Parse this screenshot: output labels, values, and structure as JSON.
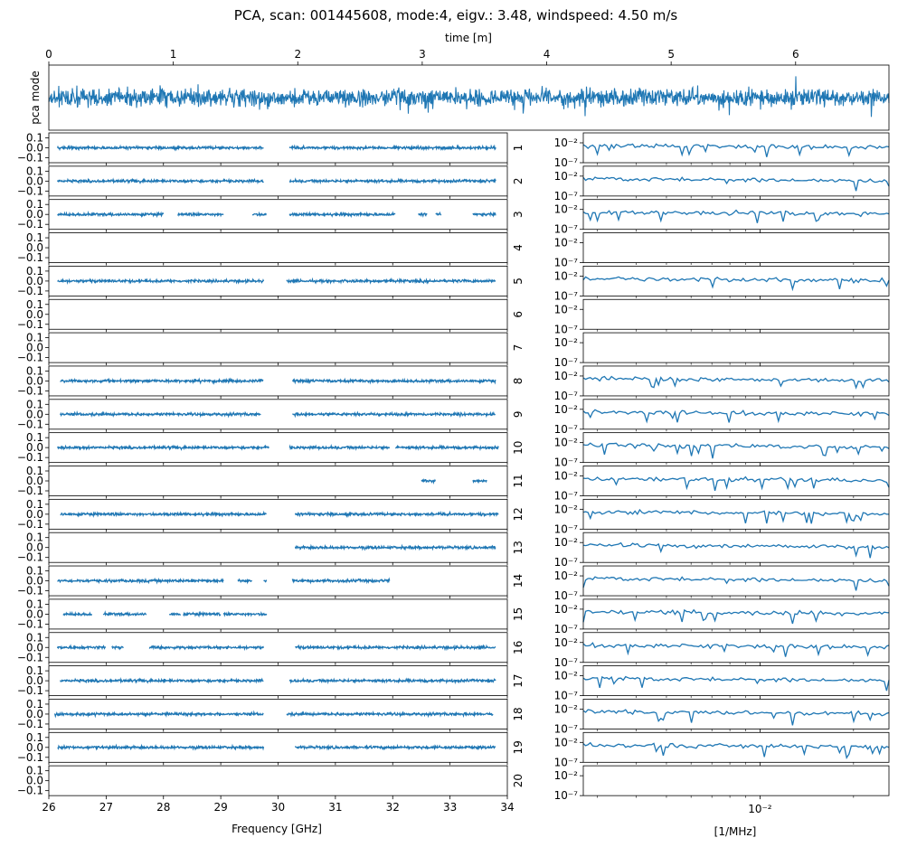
{
  "chart_data": {
    "type": "line",
    "title": "PCA, scan: 001445608, mode:4, eigv.: 3.48, windspeed: 4.50 m/s",
    "series_color": "#1f77b4",
    "time_panel": {
      "xlabel": "time [m]",
      "ylabel": "pca mode",
      "xlim": [
        0,
        6.75
      ],
      "xticks": [
        "0",
        "1",
        "2",
        "3",
        "4",
        "5",
        "6"
      ],
      "xtick_values": [
        0,
        1,
        2,
        3,
        4,
        5,
        6
      ]
    },
    "freq_panels": {
      "xlabel": "Frequency [GHz]",
      "xlim": [
        26,
        34
      ],
      "xticks": [
        "26",
        "27",
        "28",
        "29",
        "30",
        "31",
        "32",
        "33",
        "34"
      ],
      "xtick_values": [
        26,
        27,
        28,
        29,
        30,
        31,
        32,
        33,
        34
      ],
      "ylim": [
        -0.15,
        0.15
      ],
      "yticks": [
        "0.1",
        "0.0",
        "−0.1"
      ],
      "ytick_values": [
        0.1,
        0.0,
        -0.1
      ],
      "feeds": [
        {
          "label": "1",
          "segments": [
            [
              26.15,
              29.75
            ],
            [
              30.2,
              33.8
            ]
          ],
          "offset": 0.0
        },
        {
          "label": "2",
          "segments": [
            [
              26.15,
              29.75
            ],
            [
              30.2,
              33.8
            ]
          ],
          "offset": 0.0
        },
        {
          "label": "3",
          "segments": [
            [
              26.15,
              28.0
            ],
            [
              28.25,
              29.05
            ],
            [
              29.55,
              29.8
            ],
            [
              30.2,
              32.05
            ],
            [
              32.45,
              32.6
            ],
            [
              32.75,
              32.85
            ],
            [
              33.4,
              33.8
            ]
          ],
          "offset": 0.0
        },
        {
          "label": "4",
          "segments": [],
          "offset": 0.0
        },
        {
          "label": "5",
          "segments": [
            [
              26.15,
              29.75
            ],
            [
              30.15,
              33.8
            ]
          ],
          "offset": 0.0
        },
        {
          "label": "6",
          "segments": [],
          "offset": 0.0
        },
        {
          "label": "7",
          "segments": [],
          "offset": 0.0
        },
        {
          "label": "8",
          "segments": [
            [
              26.2,
              29.75
            ],
            [
              30.25,
              33.8
            ]
          ],
          "offset": 0.0
        },
        {
          "label": "9",
          "segments": [
            [
              26.2,
              29.7
            ],
            [
              30.25,
              33.8
            ]
          ],
          "offset": 0.0
        },
        {
          "label": "10",
          "segments": [
            [
              26.15,
              29.85
            ],
            [
              30.2,
              31.95
            ],
            [
              32.05,
              33.85
            ]
          ],
          "offset": 0.0
        },
        {
          "label": "11",
          "segments": [
            [
              32.5,
              32.75
            ],
            [
              33.4,
              33.65
            ]
          ],
          "offset": 0.0
        },
        {
          "label": "12",
          "segments": [
            [
              26.2,
              29.8
            ],
            [
              30.3,
              33.85
            ]
          ],
          "offset": 0.0
        },
        {
          "label": "13",
          "segments": [
            [
              30.3,
              33.8
            ]
          ],
          "offset": 0.0
        },
        {
          "label": "14",
          "segments": [
            [
              26.15,
              29.05
            ],
            [
              29.3,
              29.55
            ],
            [
              29.75,
              29.8
            ],
            [
              30.25,
              31.95
            ]
          ],
          "offset": 0.0
        },
        {
          "label": "15",
          "segments": [
            [
              26.25,
              26.75
            ],
            [
              26.95,
              27.7
            ],
            [
              28.1,
              28.3
            ],
            [
              28.35,
              29.0
            ],
            [
              29.05,
              29.8
            ]
          ],
          "offset": 0.0
        },
        {
          "label": "16",
          "segments": [
            [
              26.15,
              27.0
            ],
            [
              27.1,
              27.3
            ],
            [
              27.75,
              29.75
            ],
            [
              30.3,
              33.8
            ]
          ],
          "offset": 0.0
        },
        {
          "label": "17",
          "segments": [
            [
              26.2,
              29.75
            ],
            [
              30.2,
              33.8
            ]
          ],
          "offset": 0.0
        },
        {
          "label": "18",
          "segments": [
            [
              26.1,
              29.75
            ],
            [
              30.15,
              33.75
            ]
          ],
          "offset": 0.0
        },
        {
          "label": "19",
          "segments": [
            [
              26.15,
              29.75
            ],
            [
              30.3,
              33.8
            ]
          ],
          "offset": 0.0
        },
        {
          "label": "20",
          "segments": [],
          "offset": 0.0
        }
      ]
    },
    "psd_panels": {
      "xlabel": "[1/MHz]",
      "xscale": "log",
      "xtick_label": "10⁻²",
      "xtick_value": 0.01,
      "yticks": [
        "10⁻²",
        "10⁻⁷"
      ],
      "ytick_values": [
        -2,
        -7
      ],
      "active": [
        true,
        true,
        true,
        false,
        true,
        false,
        false,
        true,
        true,
        true,
        true,
        true,
        true,
        true,
        true,
        true,
        true,
        true,
        true,
        false
      ]
    }
  }
}
